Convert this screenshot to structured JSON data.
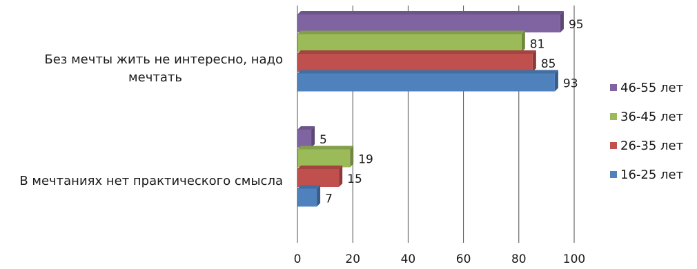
{
  "chart_data": {
    "type": "bar",
    "orientation": "horizontal",
    "categories": [
      [
        "Без мечты жить не интересно, надо",
        "мечтать"
      ],
      [
        "В мечтаниях нет практического смысла"
      ]
    ],
    "series": [
      {
        "name": "46-55 лет",
        "color": "#8064a2",
        "values": [
          95,
          5
        ]
      },
      {
        "name": "36-45 лет",
        "color": "#9bbb59",
        "values": [
          81,
          19
        ]
      },
      {
        "name": "26-35 лет",
        "color": "#c0504d",
        "values": [
          85,
          15
        ]
      },
      {
        "name": "16-25 лет",
        "color": "#4f81bd",
        "values": [
          93,
          7
        ]
      }
    ],
    "x_ticks": [
      "0",
      "20",
      "40",
      "60",
      "80",
      "100"
    ],
    "xlim": [
      0,
      100
    ],
    "grid": true,
    "legend_position": "right",
    "title": "",
    "xlabel": "",
    "ylabel": ""
  }
}
